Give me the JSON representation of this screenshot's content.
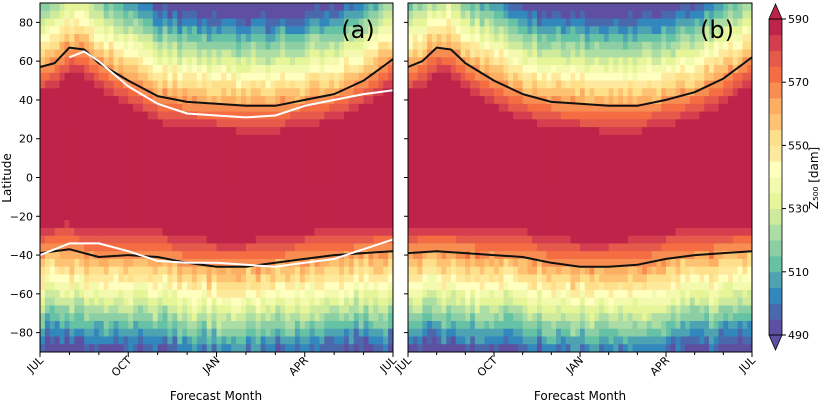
{
  "chart_data": [
    {
      "type": "heatmap",
      "panel_label": "(a)",
      "title": "",
      "xlabel": "Forecast Month",
      "ylabel": "Latitude",
      "x_ticks": [
        "JUL",
        "OCT",
        "JAN",
        "APR",
        "JUL"
      ],
      "x_range_months": [
        0,
        12
      ],
      "y_ticks": [
        80,
        60,
        40,
        20,
        0,
        -20,
        -40,
        -60,
        -80
      ],
      "ylim": [
        -90,
        90
      ],
      "contours": [
        {
          "name": "black",
          "color": "#111111",
          "north": {
            "months": [
              0,
              0.5,
              1,
              1.5,
              2,
              3,
              4,
              5,
              6,
              7,
              8,
              9,
              10,
              11,
              12
            ],
            "lat": [
              57,
              59,
              67,
              66,
              59,
              50,
              42,
              39,
              38,
              37,
              37,
              40,
              43,
              50,
              61
            ]
          },
          "south": {
            "months": [
              0,
              1,
              2,
              3,
              4,
              5,
              6,
              7,
              8,
              9,
              10,
              11,
              12
            ],
            "lat": [
              -39,
              -37,
              -41,
              -40,
              -41,
              -44,
              -46,
              -46,
              -44,
              -42,
              -40,
              -39,
              -38
            ]
          }
        },
        {
          "name": "white",
          "color": "#ffffff",
          "north": {
            "months": [
              1,
              1.5,
              2,
              3,
              4,
              5,
              6,
              7,
              8,
              9,
              10,
              11,
              12
            ],
            "lat": [
              62,
              65,
              60,
              47,
              38,
              33,
              32,
              31,
              32,
              37,
              40,
              43,
              45
            ]
          },
          "south": {
            "months": [
              0,
              1,
              2,
              3,
              4,
              5,
              6,
              7,
              8,
              9,
              10,
              11,
              12
            ],
            "lat": [
              -40,
              -34,
              -34,
              -38,
              -43,
              -44,
              -44,
              -45,
              -46,
              -44,
              -42,
              -37,
              -32
            ]
          }
        }
      ]
    },
    {
      "type": "heatmap",
      "panel_label": "(b)",
      "title": "",
      "xlabel": "Forecast Month",
      "ylabel": "",
      "x_ticks": [
        "JUL",
        "OCT",
        "JAN",
        "APR",
        "JUL"
      ],
      "x_range_months": [
        0,
        12
      ],
      "y_ticks": [
        80,
        60,
        40,
        20,
        0,
        -20,
        -40,
        -60,
        -80
      ],
      "ylim": [
        -90,
        90
      ],
      "contours": [
        {
          "name": "black",
          "color": "#111111",
          "north": {
            "months": [
              0,
              0.5,
              1,
              1.5,
              2,
              3,
              4,
              5,
              6,
              7,
              8,
              9,
              10,
              11,
              12
            ],
            "lat": [
              57,
              60,
              67,
              66,
              59,
              50,
              43,
              39,
              38,
              37,
              37,
              40,
              44,
              51,
              62
            ]
          },
          "south": {
            "months": [
              0,
              1,
              2,
              3,
              4,
              5,
              6,
              7,
              8,
              9,
              10,
              11,
              12
            ],
            "lat": [
              -39,
              -38,
              -39,
              -40,
              -41,
              -44,
              -46,
              -46,
              -45,
              -42,
              -40,
              -39,
              -38
            ]
          }
        }
      ]
    }
  ],
  "colorbar": {
    "label": "Z₅₀₀ [dam]",
    "min": 490,
    "max": 590,
    "tick_labels": [
      "590",
      "570",
      "550",
      "530",
      "510",
      "490"
    ],
    "levels": [
      490,
      495,
      500,
      505,
      510,
      515,
      520,
      525,
      530,
      535,
      540,
      545,
      550,
      555,
      560,
      565,
      570,
      575,
      580,
      585,
      590
    ],
    "colors": [
      "#5e4fa2",
      "#4a69ad",
      "#3288bd",
      "#4da3b1",
      "#66c2a5",
      "#8ccfa4",
      "#abdda4",
      "#cdea9d",
      "#e6f598",
      "#f3faae",
      "#ffffbf",
      "#fee99d",
      "#fee08b",
      "#fdc372",
      "#fdae61",
      "#f88d52",
      "#f46d43",
      "#e55a4a",
      "#d53e4f",
      "#be2449"
    ]
  }
}
